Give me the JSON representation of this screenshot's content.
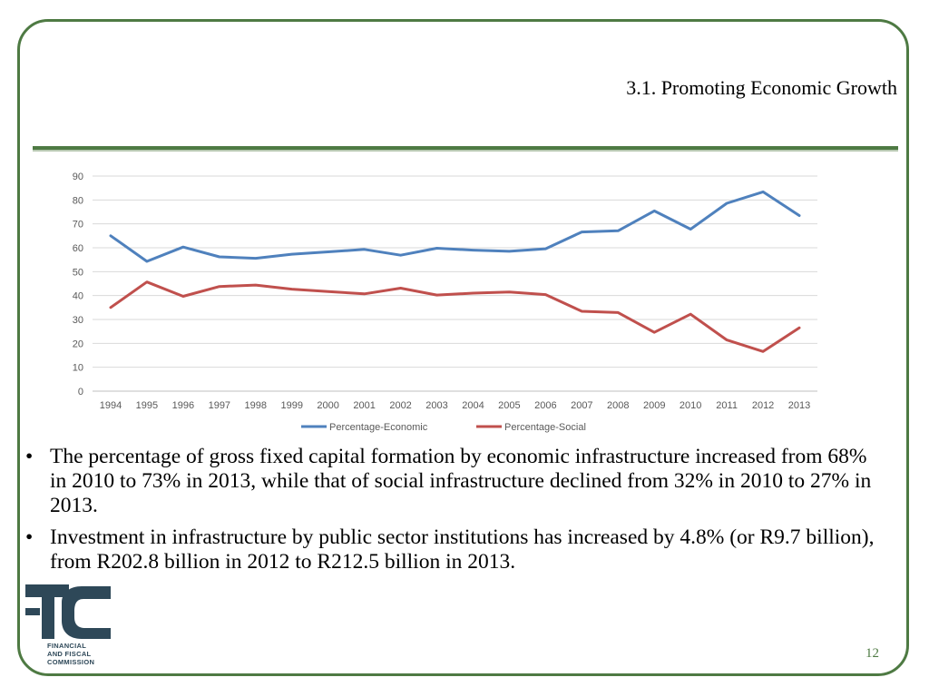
{
  "slide": {
    "title": "3.1.  Promoting Economic Growth",
    "page_number": "12",
    "colors": {
      "frame": "#4e7a43",
      "economic": "#4f81bd",
      "social": "#c0504d"
    }
  },
  "bullets": [
    "The percentage of gross fixed capital formation by economic infrastructure increased from 68% in 2010 to 73% in 2013, while that of social infrastructure declined from 32% in 2010 to 27% in 2013.",
    "Investment in infrastructure by public sector institutions has increased by 4.8% (or R9.7 billion), from R202.8 billion in 2012 to R212.5 billion in 2013."
  ],
  "logo": {
    "icon": "ffc-logo-icon",
    "text_lines": [
      "FINANCIAL",
      "AND FISCAL",
      "COMMISSION"
    ]
  },
  "chart_data": {
    "type": "line",
    "categories": [
      "1994",
      "1995",
      "1996",
      "1997",
      "1998",
      "1999",
      "2000",
      "2001",
      "2002",
      "2003",
      "2004",
      "2005",
      "2006",
      "2007",
      "2008",
      "2009",
      "2010",
      "2011",
      "2012",
      "2013"
    ],
    "series": [
      {
        "name": "Percentage-Economic",
        "color": "#4f81bd",
        "values": [
          65,
          54.3,
          60.3,
          56.2,
          55.6,
          57.3,
          58.3,
          59.3,
          56.9,
          59.8,
          59,
          58.5,
          59.6,
          66.6,
          67.1,
          75.4,
          67.8,
          78.6,
          83.4,
          73.5
        ]
      },
      {
        "name": "Percentage-Social",
        "color": "#c0504d",
        "values": [
          35,
          45.7,
          39.7,
          43.8,
          44.4,
          42.7,
          41.7,
          40.7,
          43.1,
          40.2,
          41,
          41.5,
          40.4,
          33.4,
          32.9,
          24.6,
          32.2,
          21.4,
          16.6,
          26.5
        ]
      }
    ],
    "yticks": [
      "0",
      "10",
      "20",
      "30",
      "40",
      "50",
      "60",
      "70",
      "80",
      "90"
    ],
    "ylim": [
      0,
      90
    ],
    "grid": true,
    "legend": "bottom"
  }
}
